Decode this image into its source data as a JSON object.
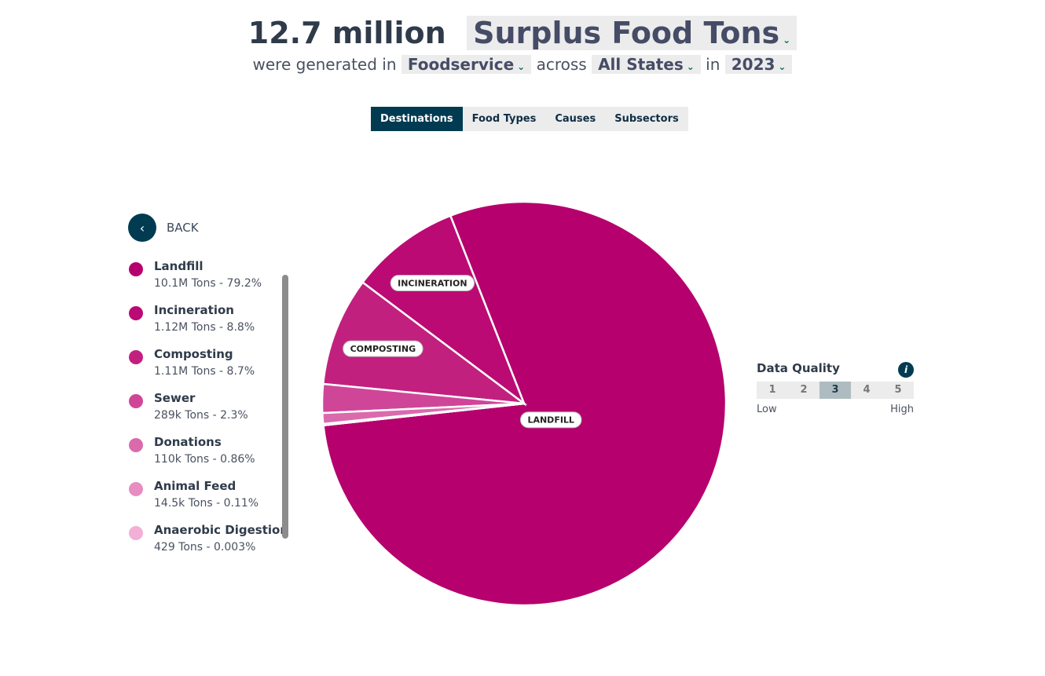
{
  "header": {
    "amount": "12.7 million",
    "measure": "Surplus Food Tons",
    "text1": "were generated in",
    "sector": "Foodservice",
    "text2": "across",
    "region": "All States",
    "text3": "in",
    "year": "2023"
  },
  "tabs": {
    "items": [
      "Destinations",
      "Food Types",
      "Causes",
      "Subsectors"
    ],
    "active": 0
  },
  "back": "BACK",
  "data_quality": {
    "title": "Data Quality",
    "levels": [
      1,
      2,
      3,
      4,
      5
    ],
    "selected": 3,
    "low": "Low",
    "high": "High"
  },
  "chart_data": {
    "type": "pie",
    "categories": [
      "Landfill",
      "Incineration",
      "Composting",
      "Sewer",
      "Donations",
      "Animal Feed",
      "Anaerobic Digestion"
    ],
    "values": [
      79.2,
      8.8,
      8.7,
      2.3,
      0.86,
      0.11,
      0.003
    ],
    "value_labels": [
      "10.1M Tons - 79.2%",
      "1.12M Tons - 8.8%",
      "1.11M Tons - 8.7%",
      "289k Tons - 2.3%",
      "110k Tons - 0.86%",
      "14.5k Tons - 0.11%",
      "429 Tons - 0.003%"
    ],
    "colors": [
      "#b5006e",
      "#bb0a74",
      "#c2207f",
      "#cf4699",
      "#db6aad",
      "#e78dc2",
      "#f2b0d6"
    ]
  }
}
